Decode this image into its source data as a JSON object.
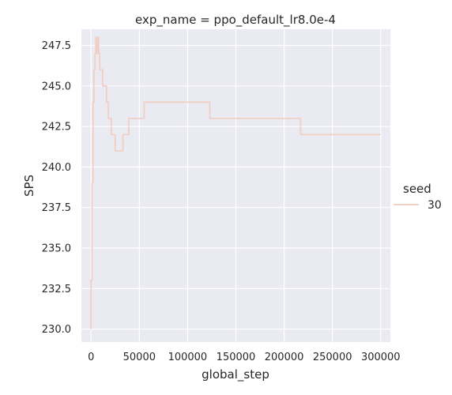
{
  "colors": {
    "plot_background": "#eaeaf2",
    "grid": "#ffffff",
    "series_line": "#f1cfc4",
    "text": "#262626"
  },
  "chart_data": {
    "type": "line",
    "title": "exp_name = ppo_default_lr8.0e-4",
    "xlabel": "global_step",
    "ylabel": "SPS",
    "xlim": [
      -10000,
      310000
    ],
    "ylim": [
      229.2,
      248.5
    ],
    "xticks": [
      0,
      50000,
      100000,
      150000,
      200000,
      250000,
      300000
    ],
    "xtick_labels": [
      "0",
      "50000",
      "100000",
      "150000",
      "200000",
      "250000",
      "300000"
    ],
    "yticks": [
      230.0,
      232.5,
      235.0,
      237.5,
      240.0,
      242.5,
      245.0,
      247.5
    ],
    "ytick_labels": [
      "230.0",
      "232.5",
      "235.0",
      "237.5",
      "240.0",
      "242.5",
      "245.0",
      "247.5"
    ],
    "grid": true,
    "legend": {
      "title": "seed",
      "placement": "right",
      "entries": [
        "30"
      ]
    },
    "series": [
      {
        "name": "30",
        "x": [
          0,
          0,
          1000,
          1000,
          2000,
          2000,
          3000,
          3000,
          4000,
          4000,
          5000,
          5000,
          6000,
          6000,
          7000,
          7000,
          8000,
          8000,
          9000,
          9000,
          10000,
          10000,
          12000,
          12000,
          14000,
          14000,
          16000,
          16000,
          18000,
          18000,
          21000,
          21000,
          23000,
          23000,
          25000,
          25000,
          33000,
          33000,
          36000,
          36000,
          39000,
          39000,
          55000,
          55000,
          123000,
          123000,
          217000,
          217000,
          300000
        ],
        "y": [
          230,
          233,
          233,
          239,
          239,
          244,
          244,
          246,
          246,
          247,
          247,
          248,
          248,
          247,
          247,
          248,
          248,
          247,
          247,
          246,
          246,
          246,
          246,
          245,
          245,
          245,
          245,
          244,
          244,
          243,
          243,
          242,
          242,
          242,
          242,
          241,
          241,
          242,
          242,
          242,
          242,
          243,
          243,
          244,
          244,
          243,
          243,
          242,
          242
        ]
      }
    ]
  }
}
